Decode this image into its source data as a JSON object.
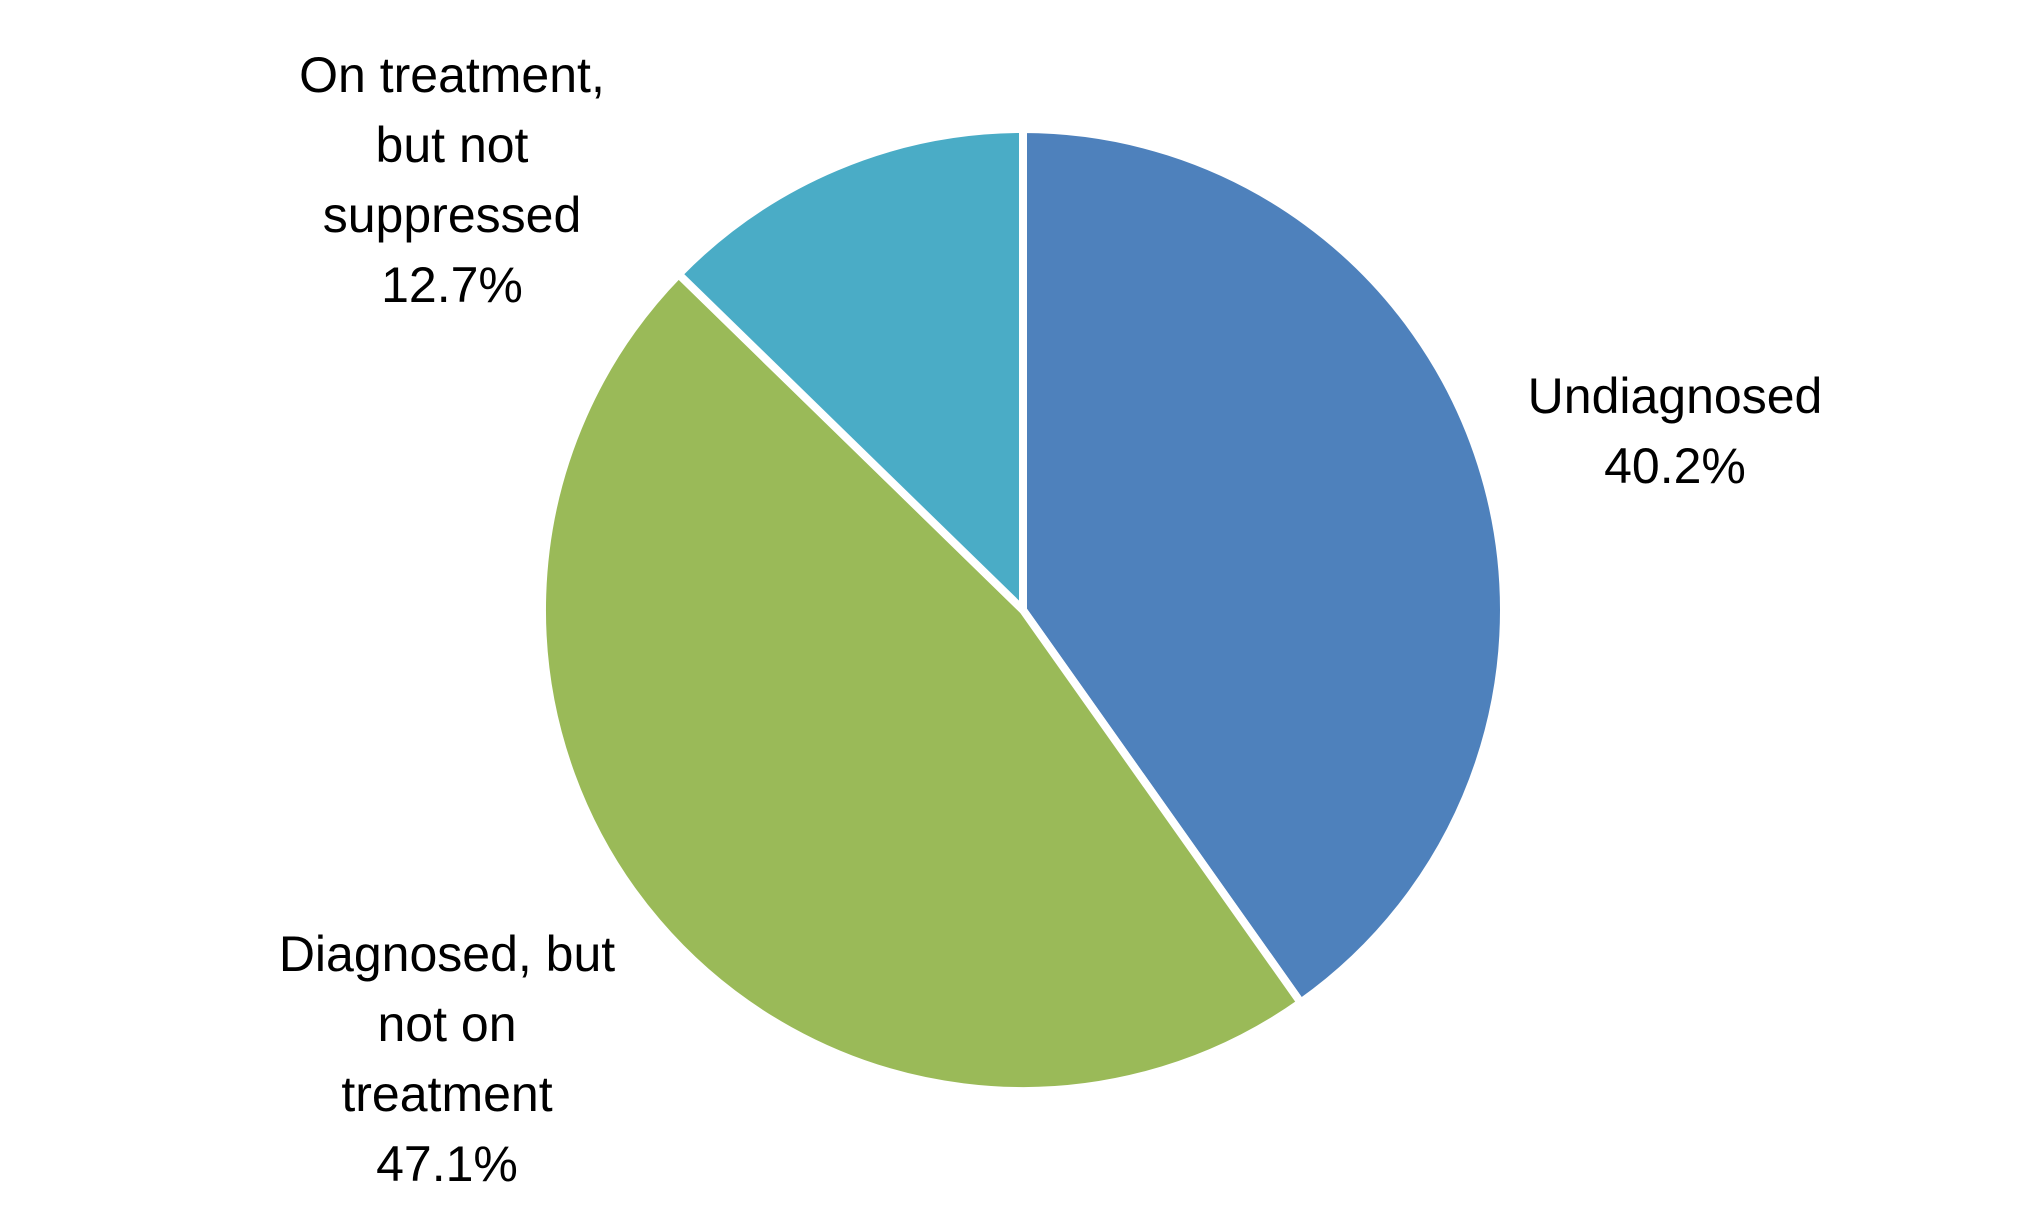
{
  "figure": {
    "background": "#FFFFFF"
  },
  "chart_data": {
    "type": "pie",
    "title": "",
    "legend": "none",
    "start_angle_deg": 0,
    "direction": "clockwise",
    "slice_border_color": "#FFFFFF",
    "labels_position": "outside",
    "slices": [
      {
        "id": "undiagnosed",
        "label": "Undiagnosed",
        "value": 40.2,
        "color": "#4E81BC",
        "callout": "Undiagnosed\n40.2%"
      },
      {
        "id": "diagnosed-not-on-treatment",
        "label": "Diagnosed, but not on treatment",
        "value": 47.1,
        "color": "#9ABA58",
        "callout": "Diagnosed, but\nnot on\ntreatment\n47.1%"
      },
      {
        "id": "on-treatment-not-suppressed",
        "label": "On treatment, but not suppressed",
        "value": 12.7,
        "color": "#4AACC6",
        "callout": "On treatment,\nbut not\nsuppressed\n12.7%"
      }
    ]
  }
}
